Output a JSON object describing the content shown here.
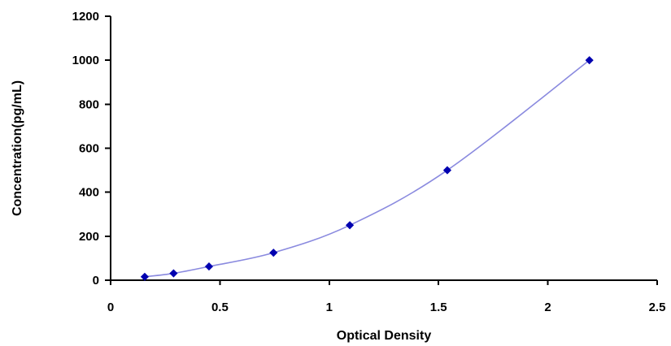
{
  "chart_data": {
    "type": "scatter",
    "title": "",
    "xlabel": "Optical Density",
    "ylabel": "Concentration(pg/mL)",
    "xlim": [
      0,
      2.5
    ],
    "ylim": [
      0,
      1200
    ],
    "x_ticks": [
      "0",
      "0.5",
      "1",
      "1.5",
      "2",
      "2.5"
    ],
    "y_ticks": [
      "0",
      "200",
      "400",
      "600",
      "800",
      "1000",
      "1200"
    ],
    "grid": false,
    "legend": "none",
    "series": [
      {
        "x": [
          0.156,
          0.288,
          0.45,
          0.745,
          1.094,
          1.54,
          2.19
        ],
        "y": [
          15.6,
          31.2,
          62.5,
          125,
          250,
          500,
          1000
        ],
        "marker": "diamond",
        "color": "#0000b0",
        "fit_line": true,
        "fit_color": "#8a8adf"
      }
    ]
  }
}
